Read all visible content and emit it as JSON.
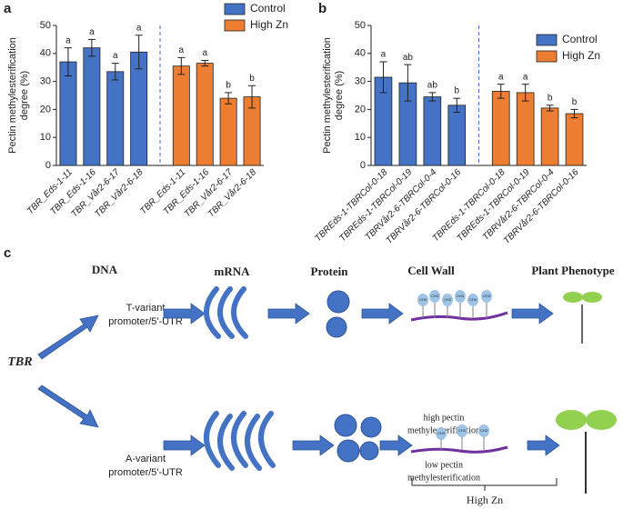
{
  "chart_data": [
    {
      "type": "bar",
      "panel": "a",
      "y_label": [
        "Pectin methylesterification",
        "degree (%)"
      ],
      "categories": [
        "TBR_Eds-1-11",
        "TBR_Eds-1-16",
        "TBR_Vår2-6-17",
        "TBR_Vår2-6-18",
        "TBR_Eds-1-11",
        "TBR_Eds-1-16",
        "TBR_Vår2-6-17",
        "TBR_Vår2-6-18"
      ],
      "series": [
        {
          "name": "Control",
          "color": "#4472c4",
          "values": [
            37,
            42,
            33.5,
            40.5,
            null,
            null,
            null,
            null
          ],
          "errors": [
            5,
            3,
            3,
            6,
            null,
            null,
            null,
            null
          ],
          "annotations": [
            "a",
            "a",
            "a",
            "a",
            null,
            null,
            null,
            null
          ]
        },
        {
          "name": "High Zn",
          "color": "#ed7d31",
          "values": [
            null,
            null,
            null,
            null,
            35.5,
            36.5,
            24,
            24.5
          ],
          "errors": [
            null,
            null,
            null,
            null,
            3,
            1,
            2,
            4
          ],
          "annotations": [
            null,
            null,
            null,
            null,
            "a",
            "a",
            "b",
            "b"
          ]
        }
      ],
      "ylim": [
        0,
        50
      ],
      "yticks": [
        0,
        10,
        20,
        30,
        40,
        50
      ],
      "legend": "top-right"
    },
    {
      "type": "bar",
      "panel": "b",
      "y_label": [
        "Pectin methylesterification",
        "degree (%)"
      ],
      "categories": [
        "TBREds-1-TBRCol-0-18",
        "TBREds-1-TBRCol-0-19",
        "TBRVår2-6-TBRCol-0-4",
        "TBRVår2-6-TBRCol-0-16",
        "TBREds-1-TBRCol-0-18",
        "TBREds-1-TBRCol-0-19",
        "TBRVår2-6-TBRCol-0-4",
        "TBRVår2-6-TBRCol-0-16"
      ],
      "series": [
        {
          "name": "Control",
          "color": "#4472c4",
          "values": [
            31.5,
            29.5,
            24.5,
            21.5,
            null,
            null,
            null,
            null
          ],
          "errors": [
            5.5,
            6.5,
            1.5,
            2.5,
            null,
            null,
            null,
            null
          ],
          "annotations": [
            "a",
            "ab",
            "ab",
            "b",
            null,
            null,
            null,
            null
          ]
        },
        {
          "name": "High Zn",
          "color": "#ed7d31",
          "values": [
            null,
            null,
            null,
            null,
            26.5,
            26,
            20.5,
            18.5
          ],
          "errors": [
            null,
            null,
            null,
            null,
            2.5,
            3,
            1,
            1.5
          ],
          "annotations": [
            null,
            null,
            null,
            null,
            "a",
            "a",
            "b",
            "b"
          ]
        }
      ],
      "ylim": [
        0,
        50
      ],
      "yticks": [
        0,
        10,
        20,
        30,
        40,
        50
      ],
      "legend": "top-right"
    }
  ],
  "diagram": {
    "panel": "c",
    "headings": [
      "DNA",
      "mRNA",
      "Protein",
      "Cell Wall",
      "Plant Phenotype"
    ],
    "gene": "TBR",
    "variants": [
      {
        "label": [
          "T-variant",
          "promoter/5'-UTR"
        ],
        "cell_wall": [
          "high pectin",
          "methylesterification"
        ]
      },
      {
        "label": [
          "A-variant",
          "promoter/5'-UTR"
        ],
        "cell_wall": [
          "low pectin",
          "methylesterification"
        ]
      }
    ],
    "group": "CH3",
    "condition": "High Zn"
  }
}
